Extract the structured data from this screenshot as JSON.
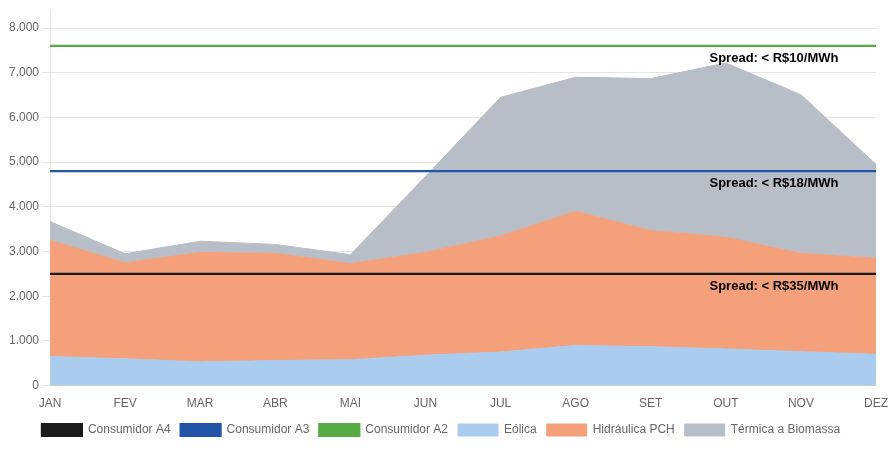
{
  "chart_data": {
    "type": "area",
    "stacked": true,
    "categories": [
      "JAN",
      "FEV",
      "MAR",
      "ABR",
      "MAI",
      "JUN",
      "JUL",
      "AGO",
      "SET",
      "OUT",
      "NOV",
      "DEZ"
    ],
    "series": [
      {
        "name": "Eólica",
        "color": "#aaccee",
        "values": [
          650,
          600,
          530,
          560,
          580,
          680,
          750,
          900,
          870,
          820,
          760,
          700
        ]
      },
      {
        "name": "Hidráulica PCH",
        "color": "#f4a07a",
        "values": [
          2600,
          2150,
          2450,
          2400,
          2150,
          2300,
          2600,
          3000,
          2600,
          2500,
          2200,
          2150
        ]
      },
      {
        "name": "Térmica a Biomassa",
        "color": "#b8bec8",
        "values": [
          420,
          200,
          250,
          200,
          200,
          1700,
          3100,
          3000,
          3400,
          3900,
          3550,
          2100
        ]
      },
      {
        "name": "Consumidor A4",
        "type": "hline",
        "color": "#1a1a1a",
        "value": 2500,
        "annotation": "Spread: < R$35/MWh"
      },
      {
        "name": "Consumidor A3",
        "type": "hline",
        "color": "#2255aa",
        "value": 4800,
        "annotation": "Spread: < R$18/MWh"
      },
      {
        "name": "Consumidor A2",
        "type": "hline",
        "color": "#55aa44",
        "value": 7600,
        "annotation": "Spread: < R$10/MWh"
      }
    ],
    "ylim": [
      0,
      8400
    ],
    "yticks": [
      0,
      {
        "value": 1000,
        "label": "1.000"
      },
      {
        "value": 2000,
        "label": "2.000"
      },
      {
        "value": 3000,
        "label": "3.000"
      },
      {
        "value": 4000,
        "label": "4.000"
      },
      {
        "value": 5000,
        "label": "5.000"
      },
      {
        "value": 6000,
        "label": "6.000"
      },
      {
        "value": 7000,
        "label": "7.000"
      },
      {
        "value": 8000,
        "label": "8.000"
      }
    ],
    "grid": true,
    "legend": "bottom"
  }
}
